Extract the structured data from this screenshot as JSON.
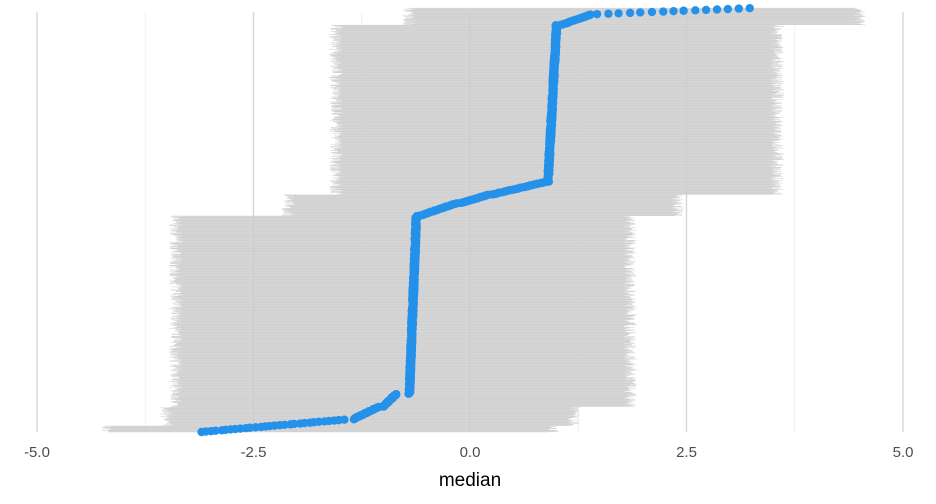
{
  "chart_data": {
    "type": "scatter",
    "title": "",
    "xlabel": "median",
    "ylabel": "",
    "xlim": [
      -5.0,
      5.0
    ],
    "x_ticks": [
      {
        "value": -5.0,
        "label": "-5.0"
      },
      {
        "value": -2.5,
        "label": "-2.5"
      },
      {
        "value": 0.0,
        "label": "0.0"
      },
      {
        "value": 2.5,
        "label": "2.5"
      },
      {
        "value": 5.0,
        "label": "5.0"
      }
    ],
    "grid": true,
    "legend": "none",
    "colors": {
      "point": "#2491EA",
      "interval": "#CCCCCC",
      "grid_major": "#D6D6D6",
      "grid_minor": "#EBEBEB"
    },
    "n_points": 2000,
    "median_steps": [
      {
        "rank_from": 0.0,
        "rank_to": 0.03,
        "median_from": -3.1,
        "median_to": -1.4
      },
      {
        "rank_from": 0.03,
        "rank_to": 0.06,
        "median_from": -1.35,
        "median_to": -1.05
      },
      {
        "rank_from": 0.06,
        "rank_to": 0.09,
        "median_from": -1.0,
        "median_to": -0.85
      },
      {
        "rank_from": 0.09,
        "rank_to": 0.51,
        "median_from": -0.7,
        "median_to": -0.62
      },
      {
        "rank_from": 0.51,
        "rank_to": 0.54,
        "median_from": -0.58,
        "median_to": -0.15
      },
      {
        "rank_from": 0.54,
        "rank_to": 0.56,
        "median_from": -0.1,
        "median_to": 0.22
      },
      {
        "rank_from": 0.56,
        "rank_to": 0.59,
        "median_from": 0.25,
        "median_to": 0.88
      },
      {
        "rank_from": 0.59,
        "rank_to": 0.96,
        "median_from": 0.9,
        "median_to": 1.0
      },
      {
        "rank_from": 0.96,
        "rank_to": 0.985,
        "median_from": 1.05,
        "median_to": 1.4
      },
      {
        "rank_from": 0.985,
        "rank_to": 1.0,
        "median_from": 1.4,
        "median_to": 3.3
      }
    ],
    "interval_bands": [
      {
        "rank_from": 0.0,
        "rank_to": 0.015,
        "lower": -4.2,
        "upper": 0.95
      },
      {
        "rank_from": 0.015,
        "rank_to": 0.06,
        "lower": -3.5,
        "upper": 1.2
      },
      {
        "rank_from": 0.06,
        "rank_to": 0.51,
        "lower": -3.4,
        "upper": 1.85
      },
      {
        "rank_from": 0.51,
        "rank_to": 0.56,
        "lower": -2.1,
        "upper": 2.4
      },
      {
        "rank_from": 0.56,
        "rank_to": 0.96,
        "lower": -1.55,
        "upper": 3.55
      },
      {
        "rank_from": 0.96,
        "rank_to": 1.0,
        "lower": -0.7,
        "upper": 4.5
      }
    ]
  }
}
